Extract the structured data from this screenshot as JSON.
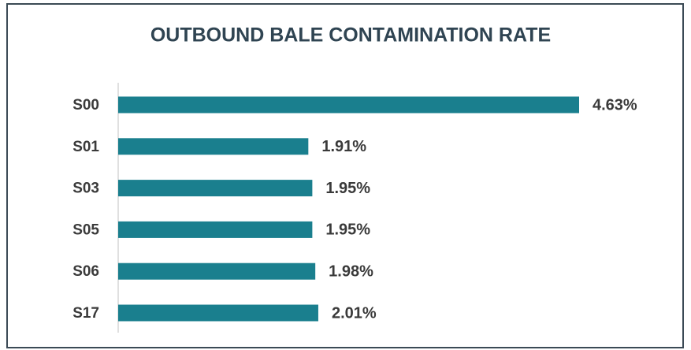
{
  "chart_data": {
    "type": "bar",
    "orientation": "horizontal",
    "title": "OUTBOUND BALE CONTAMINATION RATE",
    "categories": [
      "S00",
      "S01",
      "S03",
      "S05",
      "S06",
      "S17"
    ],
    "values": [
      4.63,
      1.91,
      1.95,
      1.95,
      1.98,
      2.01
    ],
    "value_labels": [
      "4.63%",
      "1.91%",
      "1.95%",
      "1.95%",
      "1.98%",
      "2.01%"
    ],
    "color": "#1a7f8e"
  }
}
